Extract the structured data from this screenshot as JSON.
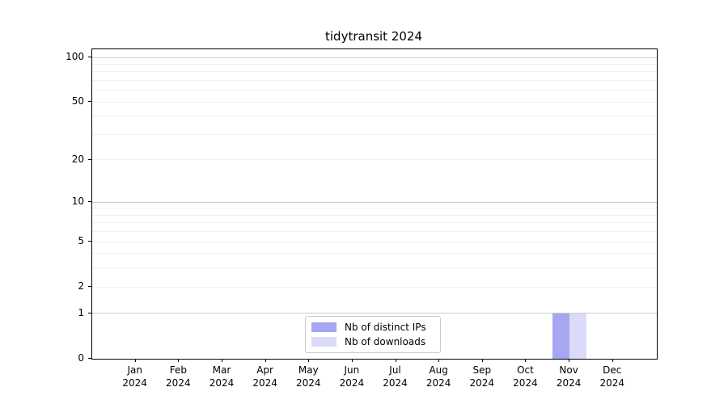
{
  "chart_data": {
    "type": "bar",
    "title": "tidytransit 2024",
    "categories": [
      "Jan",
      "Feb",
      "Mar",
      "Apr",
      "May",
      "Jun",
      "Jul",
      "Aug",
      "Sep",
      "Oct",
      "Nov",
      "Dec"
    ],
    "year_label": "2024",
    "series": [
      {
        "name": "Nb of distinct IPs",
        "color": "#a6a6f2",
        "values": [
          0,
          0,
          0,
          0,
          0,
          0,
          0,
          0,
          0,
          0,
          1,
          0
        ]
      },
      {
        "name": "Nb of downloads",
        "color": "#dbdbf9",
        "values": [
          0,
          0,
          0,
          0,
          0,
          0,
          0,
          0,
          0,
          0,
          1,
          0
        ]
      }
    ],
    "yscale": "log1p",
    "yticks": [
      0,
      1,
      2,
      5,
      10,
      20,
      50,
      100
    ],
    "major_gridlines": [
      1,
      10,
      100
    ],
    "minor_gridlines": [
      2,
      3,
      4,
      5,
      6,
      7,
      8,
      9,
      20,
      30,
      40,
      50,
      60,
      70,
      80,
      90
    ],
    "grid": true,
    "legend_position": "lower center",
    "colors": {
      "grid_major": "#cbcbcb",
      "grid_minor": "#f0f0f0",
      "spine": "#000000",
      "background": "#ffffff"
    }
  }
}
